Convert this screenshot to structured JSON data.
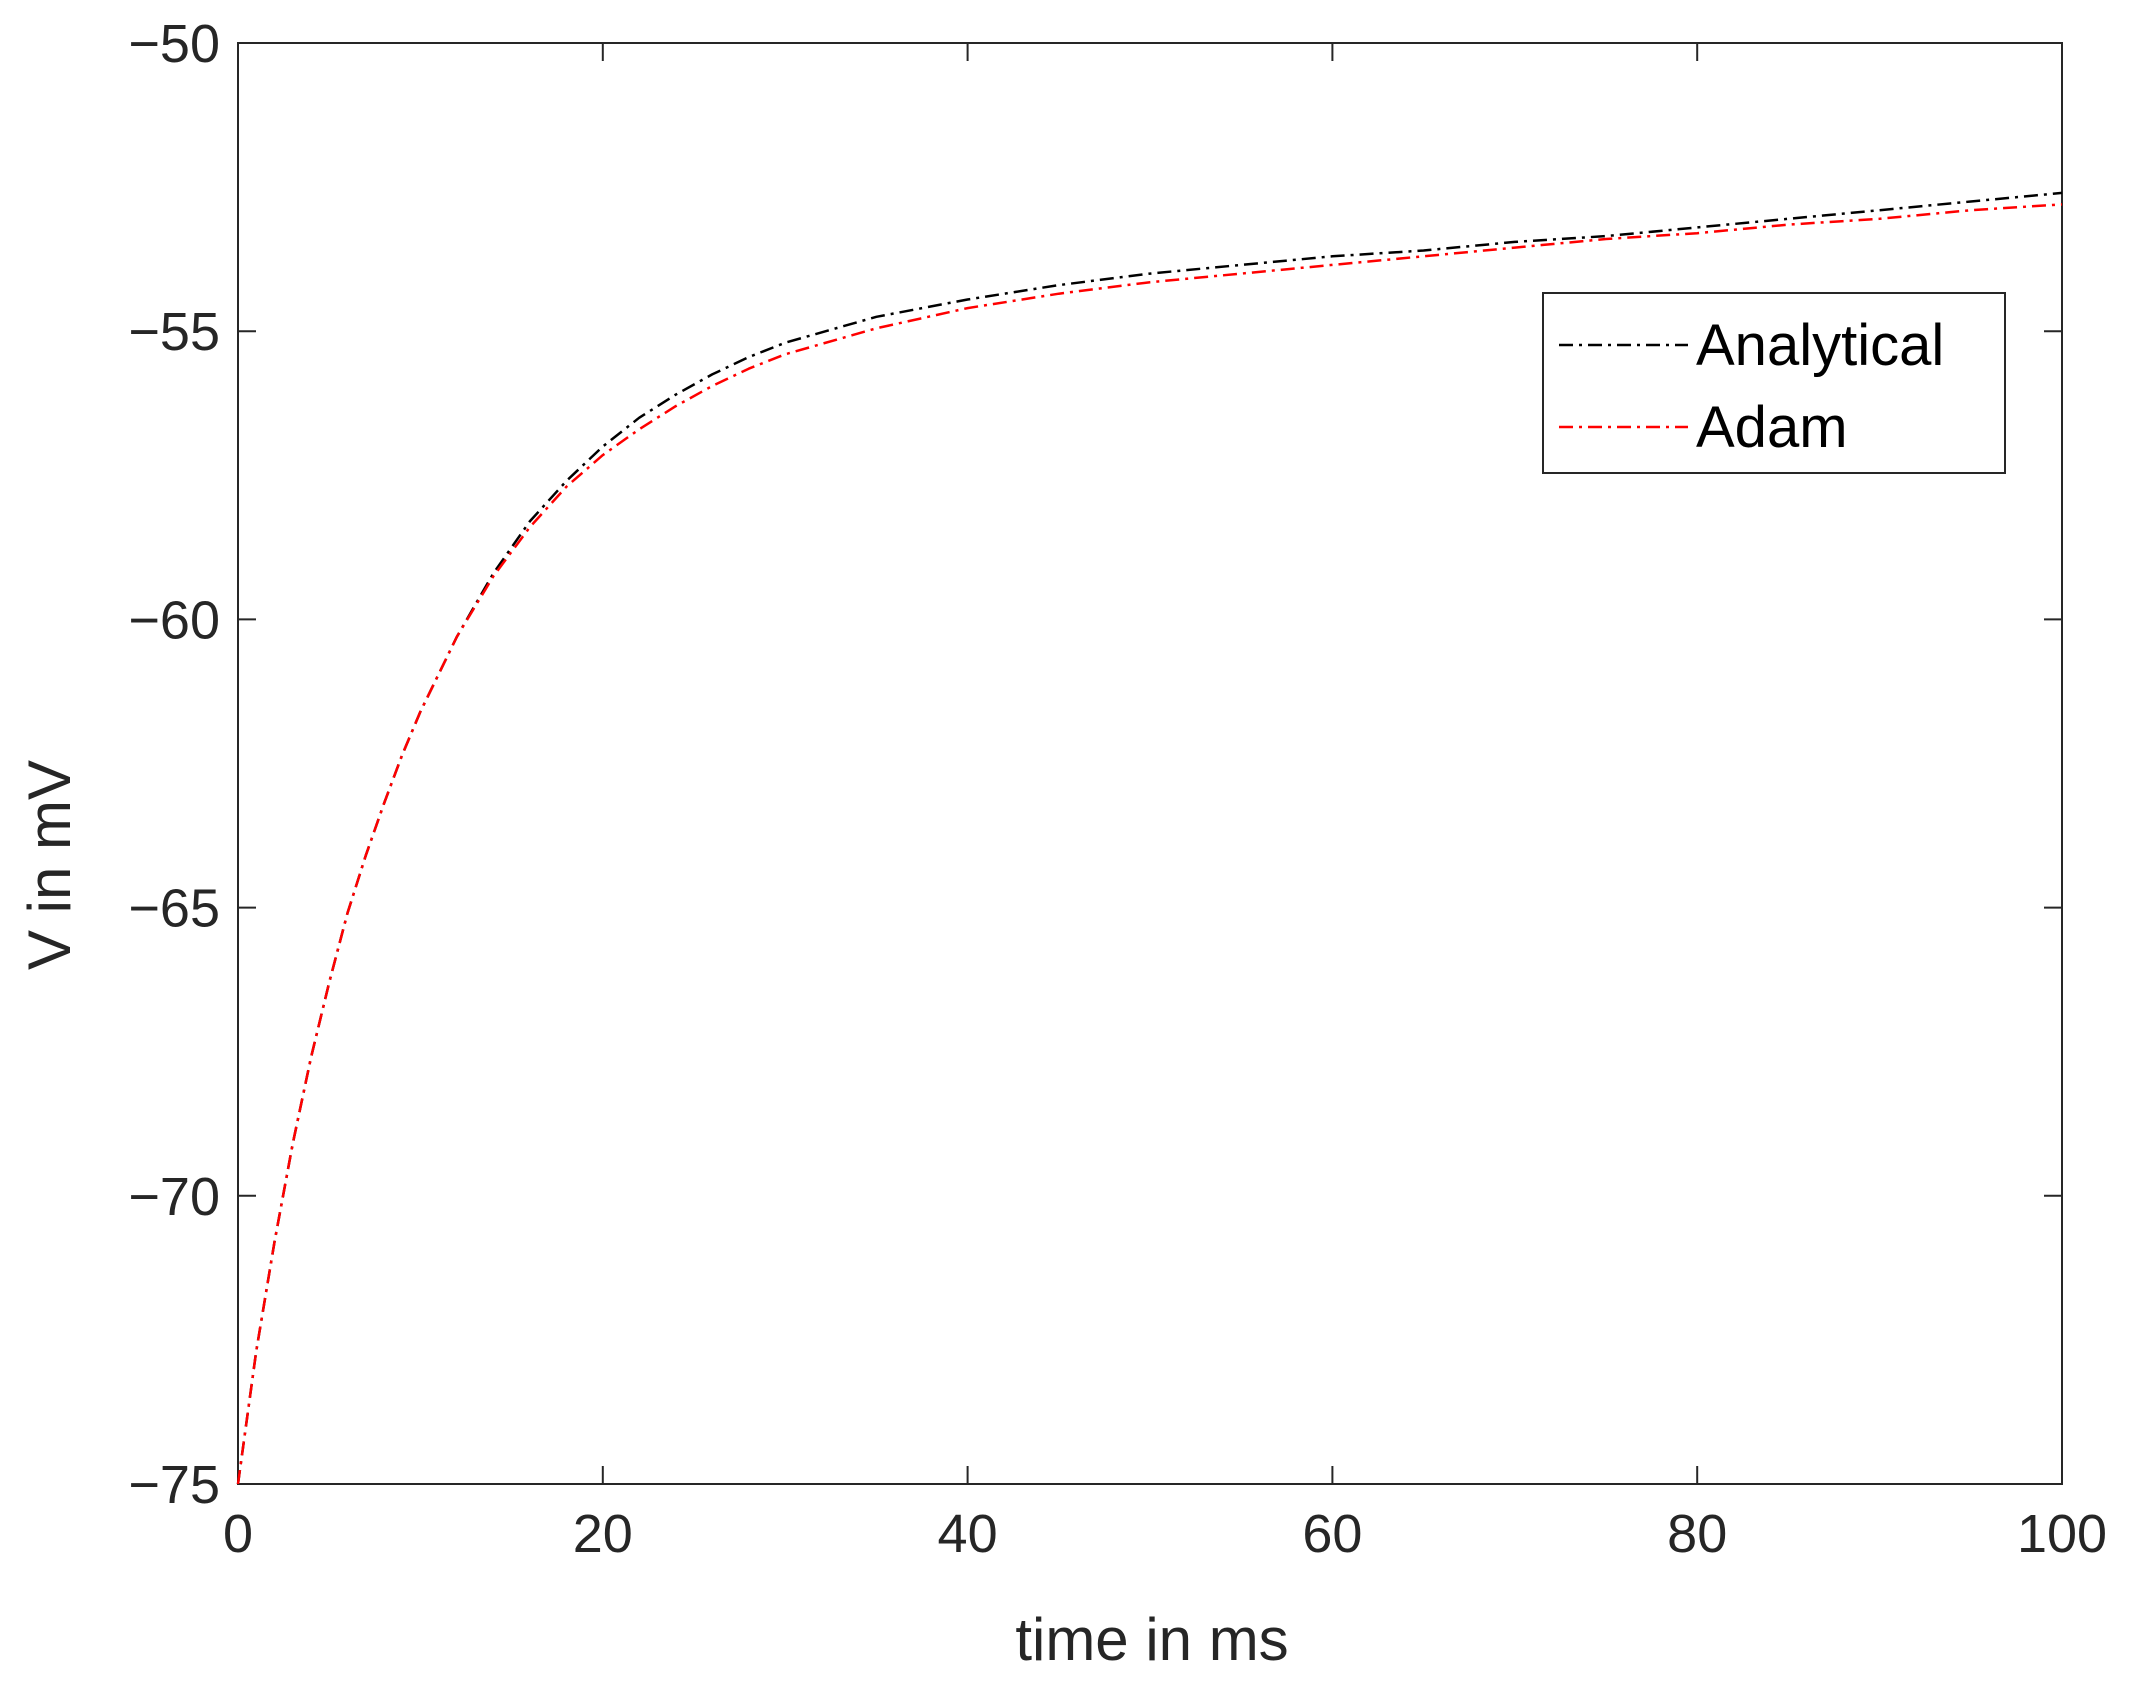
{
  "chart_data": {
    "type": "line",
    "title": "",
    "xlabel": "time in ms",
    "ylabel": "V in mV",
    "xlim": [
      0,
      100
    ],
    "ylim": [
      -75,
      -50
    ],
    "x_ticks": [
      0,
      20,
      40,
      60,
      80,
      100
    ],
    "y_ticks": [
      -75,
      -70,
      -65,
      -60,
      -55,
      -50
    ],
    "x_tick_labels": [
      "0",
      "20",
      "40",
      "60",
      "80",
      "100"
    ],
    "y_tick_labels": [
      "−75",
      "−70",
      "−65",
      "−60",
      "−55",
      "−50"
    ],
    "grid": false,
    "legend_position": "top-right",
    "line_style": "dash-dot",
    "series": [
      {
        "name": "Analytical",
        "color": "#000000",
        "x": [
          0,
          1,
          2,
          3,
          4,
          5,
          6,
          7,
          8,
          9,
          10,
          12,
          14,
          16,
          18,
          20,
          22,
          24,
          26,
          28,
          30,
          35,
          40,
          45,
          50,
          55,
          60,
          65,
          70,
          75,
          80,
          85,
          90,
          95,
          100
        ],
        "y": [
          -75.0,
          -72.7,
          -70.8,
          -69.1,
          -67.6,
          -66.3,
          -65.1,
          -64.1,
          -63.2,
          -62.35,
          -61.6,
          -60.3,
          -59.2,
          -58.3,
          -57.6,
          -57.0,
          -56.5,
          -56.1,
          -55.75,
          -55.45,
          -55.2,
          -54.75,
          -54.45,
          -54.2,
          -54.0,
          -53.85,
          -53.7,
          -53.6,
          -53.45,
          -53.35,
          -53.2,
          -53.05,
          -52.9,
          -52.75,
          -52.6
        ]
      },
      {
        "name": "Adam",
        "color": "#ff0000",
        "x": [
          0,
          1,
          2,
          3,
          4,
          5,
          6,
          7,
          8,
          9,
          10,
          12,
          14,
          16,
          18,
          20,
          22,
          24,
          26,
          28,
          30,
          35,
          40,
          45,
          50,
          55,
          60,
          65,
          70,
          75,
          80,
          85,
          90,
          95,
          100
        ],
        "y": [
          -75.0,
          -72.7,
          -70.8,
          -69.1,
          -67.6,
          -66.3,
          -65.1,
          -64.1,
          -63.2,
          -62.35,
          -61.6,
          -60.3,
          -59.25,
          -58.4,
          -57.7,
          -57.15,
          -56.7,
          -56.3,
          -55.95,
          -55.65,
          -55.4,
          -54.95,
          -54.6,
          -54.35,
          -54.15,
          -54.0,
          -53.85,
          -53.7,
          -53.55,
          -53.4,
          -53.3,
          -53.15,
          -53.05,
          -52.9,
          -52.8
        ]
      }
    ]
  }
}
